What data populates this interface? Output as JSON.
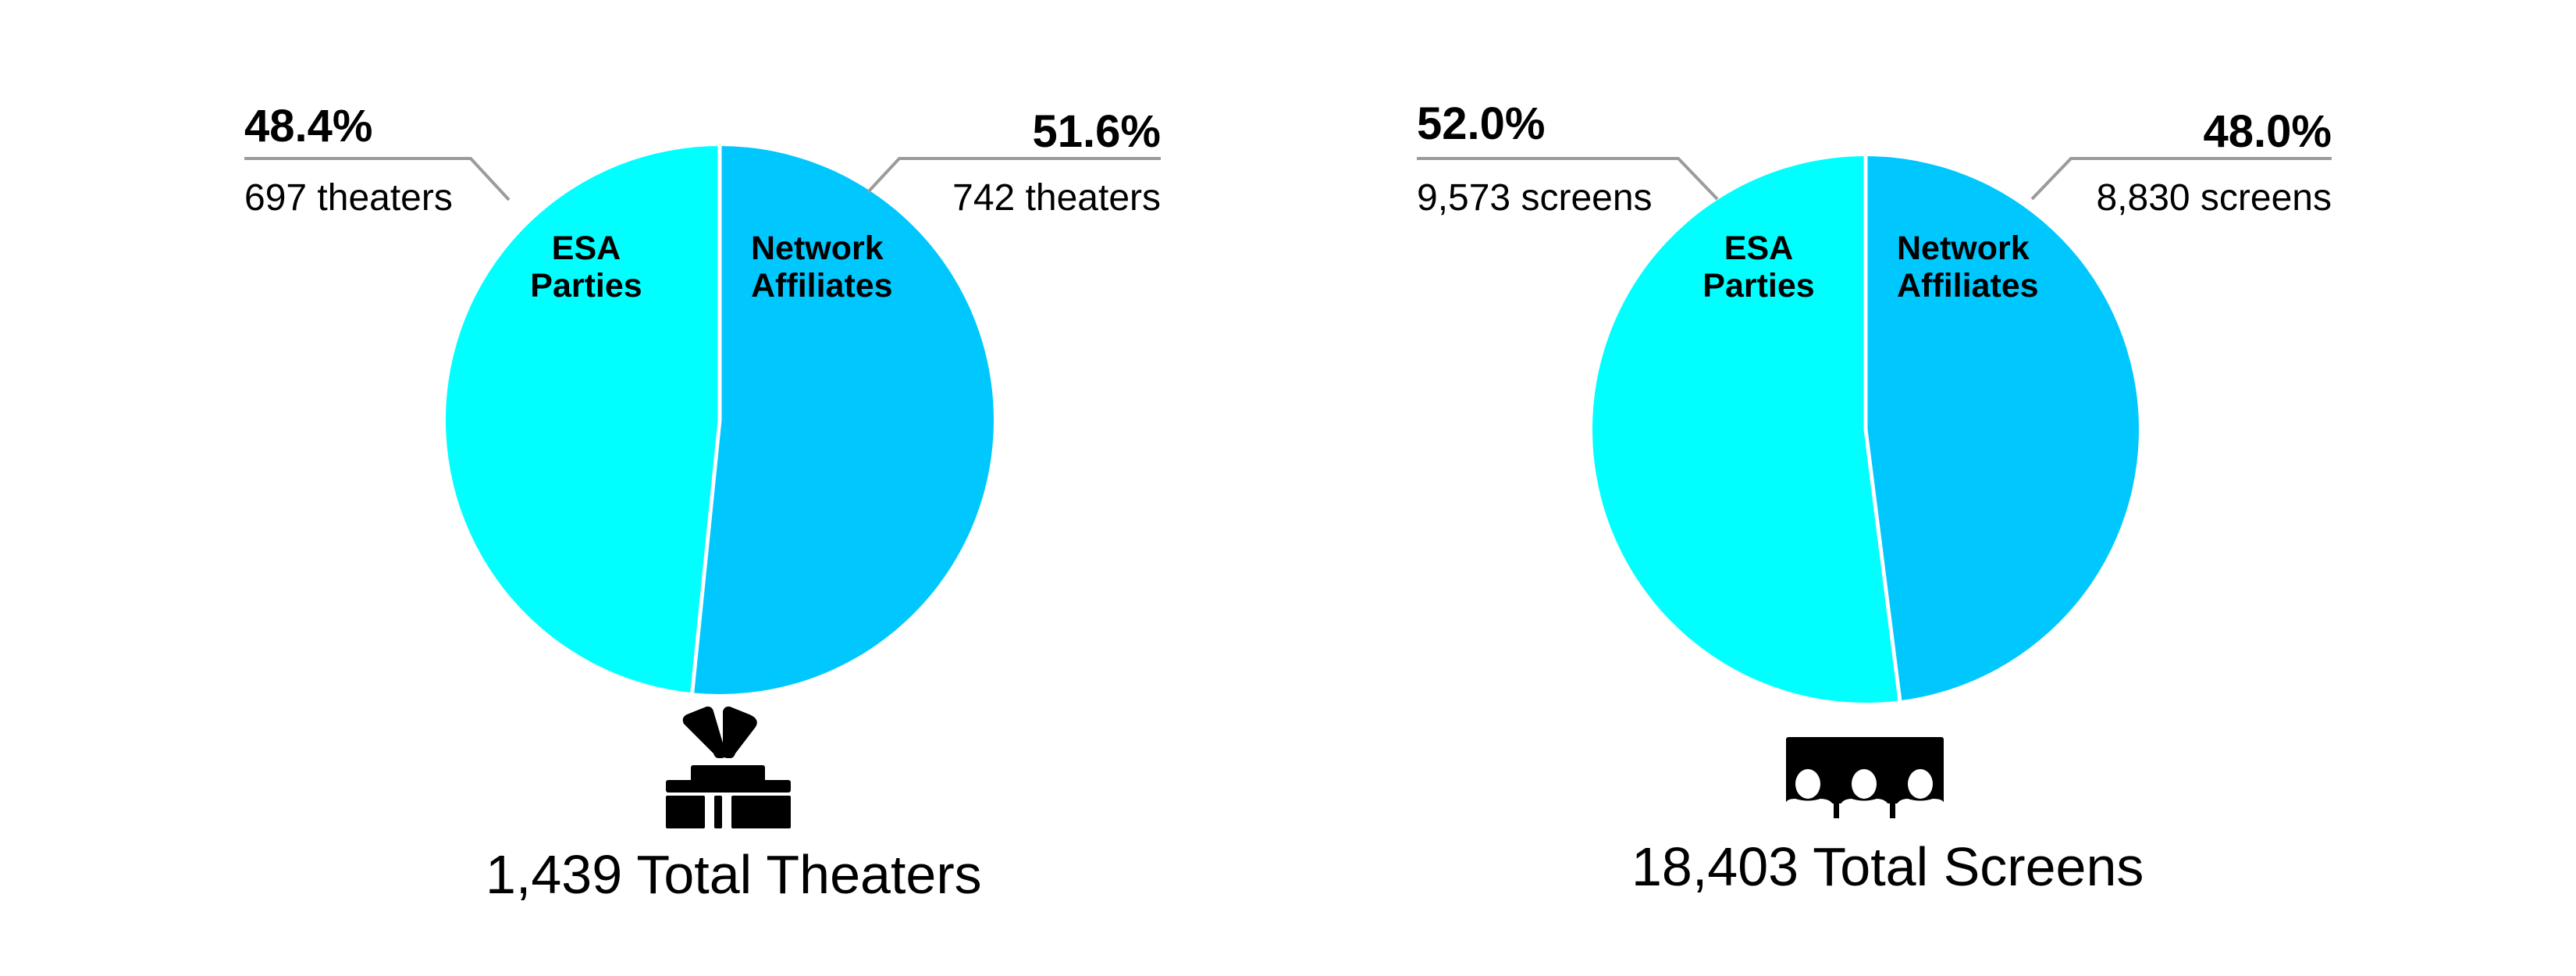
{
  "colors": {
    "esa": "#00FFFF",
    "network": "#00C8FF",
    "leader_line": "#9B9B9B",
    "divider": "#FFFFFF",
    "text": "#000000"
  },
  "theaters": {
    "esa": {
      "label_line1": "ESA",
      "label_line2": "Parties",
      "percent": "48.4%",
      "count": "697 theaters"
    },
    "network": {
      "label_line1": "Network",
      "label_line2": "Affiliates",
      "percent": "51.6%",
      "count": "742 theaters"
    },
    "icon": "theater-building-icon",
    "total": "1,439 Total Theaters"
  },
  "screens": {
    "esa": {
      "label_line1": "ESA",
      "label_line2": "Parties",
      "percent": "52.0%",
      "count": "9,573 screens"
    },
    "network": {
      "label_line1": "Network",
      "label_line2": "Affiliates",
      "percent": "48.0%",
      "count": "8,830 screens"
    },
    "icon": "audience-screen-icon",
    "total": "18,403 Total Screens"
  },
  "chart_data": [
    {
      "type": "pie",
      "title": "1,439 Total Theaters",
      "categories": [
        "Network Affiliates",
        "ESA Parties"
      ],
      "values": [
        51.6,
        48.4
      ],
      "counts": [
        742,
        697
      ],
      "unit": "theaters",
      "total": 1439,
      "colors": [
        "#00C8FF",
        "#00FFFF"
      ],
      "start_angle": "12 o'clock, clockwise"
    },
    {
      "type": "pie",
      "title": "18,403 Total Screens",
      "categories": [
        "Network Affiliates",
        "ESA Parties"
      ],
      "values": [
        48.0,
        52.0
      ],
      "counts": [
        8830,
        9573
      ],
      "unit": "screens",
      "total": 18403,
      "colors": [
        "#00C8FF",
        "#00FFFF"
      ],
      "start_angle": "12 o'clock, clockwise"
    }
  ]
}
